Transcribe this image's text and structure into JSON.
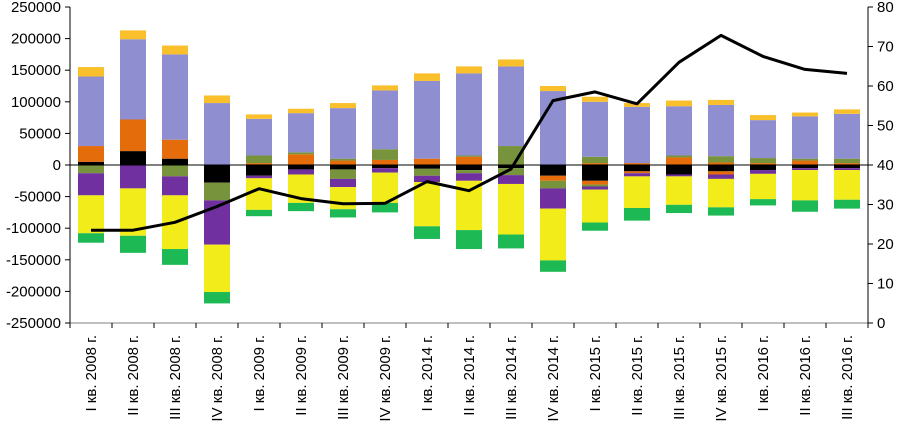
{
  "chart_data": {
    "type": "bar",
    "subtype": "stacked bar with line on secondary axis",
    "title": "",
    "xlabel": "",
    "ylabel": "",
    "y2label": "",
    "ylim": [
      -250000,
      250000
    ],
    "yticks": [
      250000,
      200000,
      150000,
      100000,
      50000,
      0,
      -50000,
      -100000,
      -150000,
      -200000,
      -250000
    ],
    "y2lim": [
      0,
      80
    ],
    "y2ticks": [
      80,
      70,
      60,
      50,
      40,
      30,
      20,
      10,
      0
    ],
    "grid": false,
    "legend": "none",
    "categories": [
      "I кв. 2008 г.",
      "II кв. 2008 г.",
      "III кв. 2008 г.",
      "IV кв. 2008 г.",
      "I кв. 2009 г.",
      "II кв. 2009 г.",
      "III кв. 2009 г.",
      "IV кв. 2009 г.",
      "I кв. 2014 г.",
      "II кв. 2014 г.",
      "III кв. 2014 г.",
      "IV кв. 2014 г.",
      "I кв. 2015 г.",
      "II кв. 2015 г.",
      "III кв. 2015 г.",
      "IV кв. 2015 г.",
      "I кв. 2016 г.",
      "II кв. 2016 г.",
      "III кв. 2016 г."
    ],
    "colors": {
      "black": "#000000",
      "orange": "#e46c0a",
      "olive": "#77933c",
      "lavender": "#8e8ed0",
      "gold": "#f9c02c",
      "purple": "#7030a0",
      "yellow": "#f2ec1a",
      "green": "#1db954",
      "line": "#000000"
    },
    "positive_series": [
      {
        "name": "black",
        "color_key": "black",
        "values": [
          5000,
          22000,
          10000,
          0,
          0,
          0,
          0,
          0,
          0,
          0,
          0,
          0,
          0,
          0,
          0,
          0,
          0,
          0,
          0
        ]
      },
      {
        "name": "orange",
        "color_key": "orange",
        "values": [
          25000,
          50000,
          30000,
          0,
          3000,
          17000,
          7000,
          8000,
          10000,
          13000,
          0,
          0,
          3000,
          3000,
          12000,
          4000,
          3000,
          7000,
          3000
        ]
      },
      {
        "name": "olive",
        "color_key": "olive",
        "values": [
          0,
          0,
          0,
          0,
          12000,
          3000,
          3000,
          17000,
          0,
          2000,
          30000,
          0,
          10000,
          0,
          3000,
          10000,
          8000,
          3000,
          7000
        ]
      },
      {
        "name": "lavender",
        "color_key": "lavender",
        "values": [
          110000,
          127000,
          135000,
          98000,
          58000,
          62000,
          80000,
          93000,
          123000,
          130000,
          126000,
          117000,
          87000,
          89000,
          78000,
          81000,
          60000,
          67000,
          71000
        ]
      },
      {
        "name": "gold",
        "color_key": "gold",
        "values": [
          15000,
          14000,
          14000,
          12000,
          7000,
          7000,
          8000,
          8000,
          12000,
          11000,
          11000,
          8000,
          8000,
          6000,
          9000,
          8000,
          8000,
          6000,
          7000
        ]
      }
    ],
    "negative_series": [
      {
        "name": "black",
        "color_key": "black",
        "values": [
          0,
          0,
          0,
          -28000,
          -17000,
          -7000,
          -7000,
          -5000,
          -6000,
          -8000,
          -5000,
          -17000,
          -25000,
          -10000,
          -15000,
          -10000,
          -8000,
          -5000,
          -5000
        ]
      },
      {
        "name": "orange",
        "color_key": "orange",
        "values": [
          0,
          0,
          0,
          0,
          0,
          0,
          0,
          0,
          0,
          0,
          0,
          -8000,
          -6000,
          -3000,
          0,
          -5000,
          0,
          0,
          0
        ]
      },
      {
        "name": "olive",
        "color_key": "olive",
        "values": [
          -13000,
          0,
          -18000,
          -28000,
          0,
          0,
          -15000,
          0,
          -11000,
          -5000,
          -11000,
          -12000,
          -3000,
          0,
          0,
          0,
          0,
          0,
          0
        ]
      },
      {
        "name": "purple",
        "color_key": "purple",
        "values": [
          -35000,
          -37000,
          -30000,
          -70000,
          -4000,
          -8000,
          -13000,
          -7000,
          -10000,
          -12000,
          -14000,
          -32000,
          -5000,
          -5000,
          -3000,
          -7000,
          -6000,
          -3000,
          -3000
        ]
      },
      {
        "name": "yellow",
        "color_key": "yellow",
        "values": [
          -60000,
          -75000,
          -85000,
          -75000,
          -50000,
          -45000,
          -35000,
          -48000,
          -70000,
          -78000,
          -80000,
          -82000,
          -52000,
          -50000,
          -45000,
          -45000,
          -40000,
          -48000,
          -47000
        ]
      },
      {
        "name": "green",
        "color_key": "green",
        "values": [
          -15000,
          -27000,
          -25000,
          -18000,
          -10000,
          -13000,
          -13000,
          -15000,
          -20000,
          -30000,
          -22000,
          -18000,
          -13000,
          -20000,
          -13000,
          -13000,
          -10000,
          -18000,
          -14000
        ]
      }
    ],
    "line_series": {
      "name": "line",
      "axis": "secondary",
      "color_key": "line",
      "values": [
        23.5,
        23.5,
        25.5,
        29.5,
        34,
        31.5,
        30.2,
        30.3,
        35.8,
        33.5,
        39,
        56.3,
        58.5,
        55.5,
        66,
        72.8,
        67.5,
        64.2,
        63.2
      ]
    }
  }
}
